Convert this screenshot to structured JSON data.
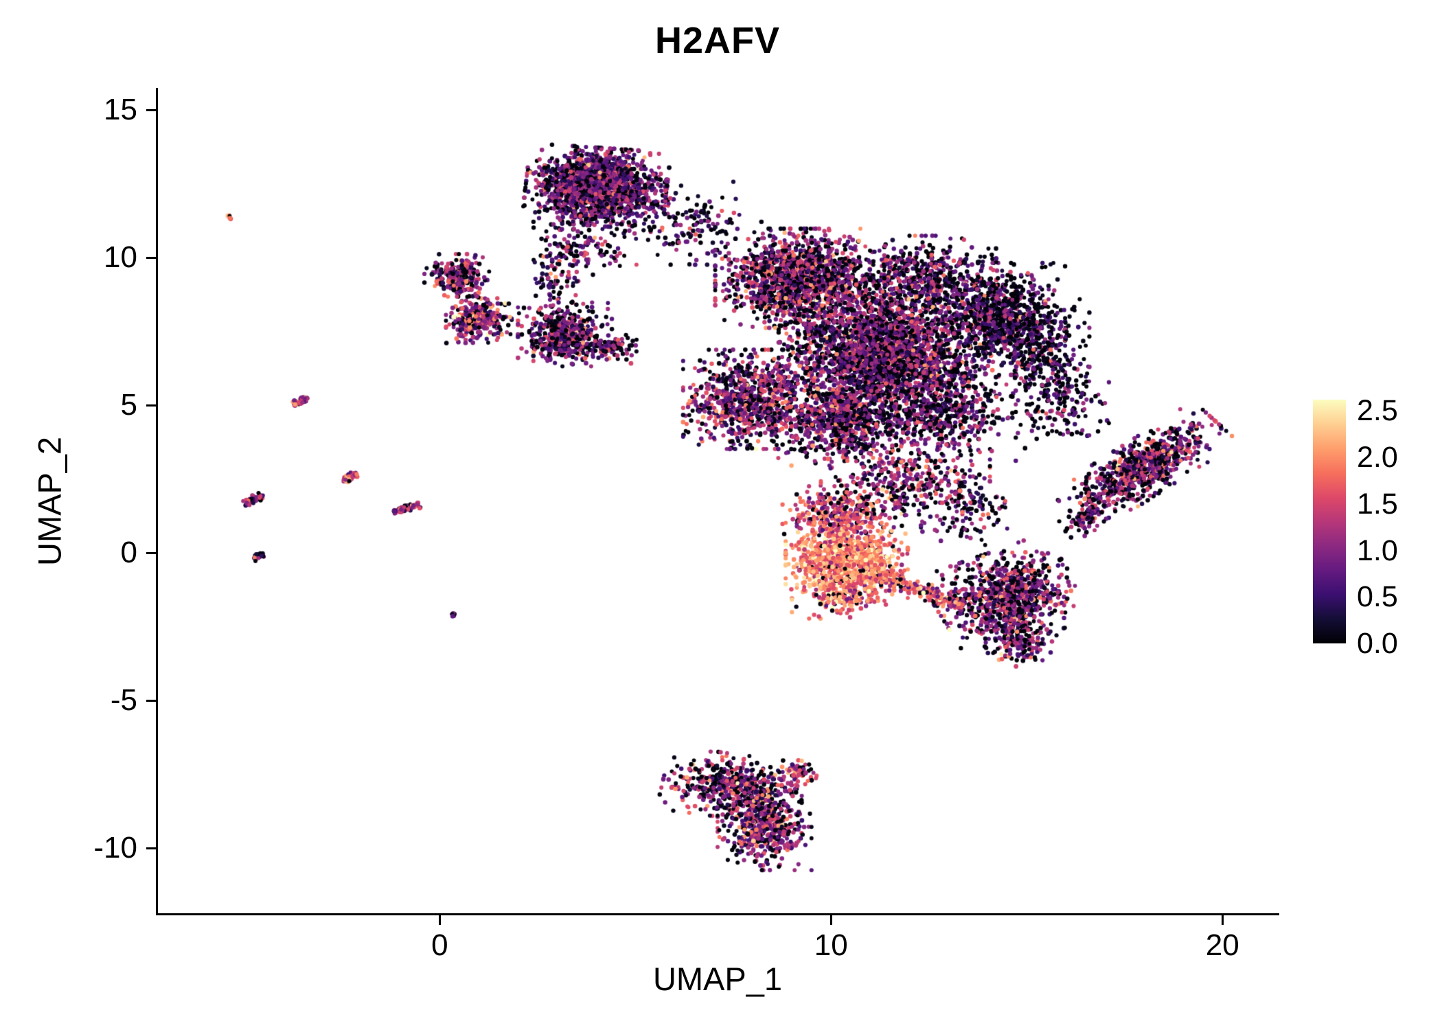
{
  "colors": {
    "background": "#ffffff",
    "text": "#000000",
    "axis": "#000000"
  },
  "chart_data": {
    "type": "scatter",
    "title": "H2AFV",
    "xlabel": "UMAP_1",
    "ylabel": "UMAP_2",
    "xlim": [
      -7.2,
      21.4
    ],
    "ylim": [
      -12.2,
      15.7
    ],
    "x_ticks": [
      0,
      10,
      20
    ],
    "y_ticks": [
      15,
      10,
      5,
      0,
      -5,
      -10
    ],
    "grid": false,
    "color_scale": {
      "name": "magma",
      "position": "right",
      "vmin": 0.0,
      "vmax": 2.5,
      "bar_value_max": 2.62,
      "tick_labels": [
        "2.5",
        "2.0",
        "1.5",
        "1.0",
        "0.5",
        "0.0"
      ],
      "stops": [
        "#000004",
        "#140e36",
        "#3b0f70",
        "#641a80",
        "#8c2981",
        "#b73779",
        "#de4968",
        "#f7705c",
        "#fe9f6d",
        "#fecf92",
        "#fcfdbf"
      ]
    },
    "point_count_approx": 16300,
    "clusters": [
      {
        "name": "top-island-core",
        "cx": 4.0,
        "cy": 12.4,
        "sx": 0.75,
        "sy": 0.55,
        "rot": -5,
        "n": 1700,
        "mean": 0.85,
        "sd": 0.45,
        "p0": 0.25,
        "shape": "blob"
      },
      {
        "name": "top-island-scatter",
        "cx": 6.3,
        "cy": 11.2,
        "sx": 0.8,
        "sy": 0.6,
        "rot": 0,
        "n": 160,
        "mean": 0.7,
        "sd": 0.5,
        "p0": 0.4,
        "shape": "blob"
      },
      {
        "name": "top-island-strand",
        "cx": 3.6,
        "cy": 10.4,
        "sx": 0.5,
        "sy": 0.5,
        "rot": 0,
        "n": 140,
        "mean": 0.8,
        "sd": 0.5,
        "p0": 0.3,
        "shape": "blob"
      },
      {
        "name": "left-blob-upper",
        "cx": 0.45,
        "cy": 9.4,
        "sx": 0.35,
        "sy": 0.3,
        "rot": 0,
        "n": 260,
        "mean": 1.0,
        "sd": 0.55,
        "p0": 0.25,
        "shape": "blob"
      },
      {
        "name": "left-blob-lower",
        "cx": 1.0,
        "cy": 7.9,
        "sx": 0.35,
        "sy": 0.33,
        "rot": 0,
        "n": 300,
        "mean": 1.1,
        "sd": 0.6,
        "p0": 0.18,
        "shape": "blob"
      },
      {
        "name": "left-bridge",
        "cx": 2.9,
        "cy": 9.2,
        "sx": 0.3,
        "sy": 0.5,
        "rot": 0,
        "n": 70,
        "mean": 0.8,
        "sd": 0.5,
        "p0": 0.3,
        "shape": "blob"
      },
      {
        "name": "mid-left-blob",
        "cx": 3.2,
        "cy": 7.4,
        "sx": 0.5,
        "sy": 0.45,
        "rot": 0,
        "n": 520,
        "mean": 0.85,
        "sd": 0.5,
        "p0": 0.28,
        "shape": "blob"
      },
      {
        "name": "mid-left-tail",
        "cx": 4.4,
        "cy": 6.9,
        "sx": 0.3,
        "sy": 0.2,
        "rot": 0,
        "n": 80,
        "mean": 0.85,
        "sd": 0.5,
        "p0": 0.3,
        "shape": "blob"
      },
      {
        "name": "main-upper-left",
        "cx": 9.2,
        "cy": 9.3,
        "sx": 0.9,
        "sy": 0.7,
        "rot": 0,
        "n": 1400,
        "mean": 1.0,
        "sd": 0.5,
        "p0": 0.28,
        "shape": "blob"
      },
      {
        "name": "main-center",
        "cx": 11.3,
        "cy": 6.8,
        "sx": 1.1,
        "sy": 1.0,
        "rot": 0,
        "n": 2600,
        "mean": 0.9,
        "sd": 0.5,
        "p0": 0.33,
        "shape": "blob"
      },
      {
        "name": "main-right-lobe",
        "cx": 14.3,
        "cy": 7.9,
        "sx": 0.7,
        "sy": 0.8,
        "rot": 0,
        "n": 900,
        "mean": 0.65,
        "sd": 0.45,
        "p0": 0.42,
        "shape": "blob"
      },
      {
        "name": "main-right-fringe",
        "cx": 15.4,
        "cy": 6.7,
        "sx": 0.5,
        "sy": 0.9,
        "rot": 0,
        "n": 260,
        "mean": 0.6,
        "sd": 0.45,
        "p0": 0.45,
        "shape": "blob"
      },
      {
        "name": "main-lower-left",
        "cx": 7.9,
        "cy": 5.2,
        "sx": 0.7,
        "sy": 0.7,
        "rot": 0,
        "n": 800,
        "mean": 1.0,
        "sd": 0.5,
        "p0": 0.25,
        "shape": "blob"
      },
      {
        "name": "main-bottom",
        "cx": 10.2,
        "cy": 4.4,
        "sx": 0.8,
        "sy": 0.6,
        "rot": 0,
        "n": 700,
        "mean": 0.95,
        "sd": 0.5,
        "p0": 0.28,
        "shape": "blob"
      },
      {
        "name": "main-bottom-right",
        "cx": 12.8,
        "cy": 4.8,
        "sx": 0.8,
        "sy": 0.7,
        "rot": 0,
        "n": 550,
        "mean": 0.8,
        "sd": 0.5,
        "p0": 0.35,
        "shape": "blob"
      },
      {
        "name": "main-top-bump",
        "cx": 12.3,
        "cy": 9.3,
        "sx": 0.8,
        "sy": 0.6,
        "rot": 0,
        "n": 500,
        "mean": 0.8,
        "sd": 0.5,
        "p0": 0.35,
        "shape": "blob"
      },
      {
        "name": "main-lower-connector",
        "cx": 11.9,
        "cy": 2.4,
        "sx": 0.9,
        "sy": 0.7,
        "rot": 0,
        "n": 380,
        "mean": 1.0,
        "sd": 0.5,
        "p0": 0.28,
        "shape": "blob"
      },
      {
        "name": "right-mid-sparse",
        "cx": 15.9,
        "cy": 5.2,
        "sx": 0.5,
        "sy": 0.7,
        "rot": 0,
        "n": 150,
        "mean": 0.7,
        "sd": 0.5,
        "p0": 0.4,
        "shape": "blob"
      },
      {
        "name": "hot-core",
        "cx": 10.4,
        "cy": -0.3,
        "sx": 0.65,
        "sy": 0.55,
        "rot": 0,
        "n": 950,
        "mean": 1.85,
        "sd": 0.32,
        "p0": 0.04,
        "shape": "blob"
      },
      {
        "name": "hot-fringe-top",
        "cx": 10.2,
        "cy": 1.2,
        "sx": 0.6,
        "sy": 0.45,
        "rot": 0,
        "n": 350,
        "mean": 1.45,
        "sd": 0.4,
        "p0": 0.1,
        "shape": "blob"
      },
      {
        "name": "hot-tail-right",
        "cx": 12.2,
        "cy": -1.2,
        "sx": 1.3,
        "sy": 0.12,
        "rot": -25,
        "n": 220,
        "mean": 1.5,
        "sd": 0.45,
        "p0": 0.1,
        "shape": "streak"
      },
      {
        "name": "hot-fringe-bottom",
        "cx": 10.2,
        "cy": -1.5,
        "sx": 0.5,
        "sy": 0.3,
        "rot": 0,
        "n": 150,
        "mean": 1.6,
        "sd": 0.4,
        "p0": 0.08,
        "shape": "blob"
      },
      {
        "name": "lower-right-cluster",
        "cx": 14.5,
        "cy": -1.5,
        "sx": 0.75,
        "sy": 0.65,
        "rot": 25,
        "n": 850,
        "mean": 0.95,
        "sd": 0.5,
        "p0": 0.3,
        "shape": "blob"
      },
      {
        "name": "lower-right-tip",
        "cx": 14.8,
        "cy": -3.0,
        "sx": 0.4,
        "sy": 0.35,
        "rot": 0,
        "n": 150,
        "mean": 0.9,
        "sd": 0.5,
        "p0": 0.3,
        "shape": "blob"
      },
      {
        "name": "lower-right-connector",
        "cx": 13.5,
        "cy": 1.5,
        "sx": 0.5,
        "sy": 0.6,
        "rot": 0,
        "n": 120,
        "mean": 0.8,
        "sd": 0.5,
        "p0": 0.35,
        "shape": "blob"
      },
      {
        "name": "far-right-band",
        "cx": 18.0,
        "cy": 2.9,
        "sx": 1.0,
        "sy": 0.38,
        "rot": 40,
        "n": 750,
        "mean": 0.95,
        "sd": 0.5,
        "p0": 0.3,
        "shape": "blob"
      },
      {
        "name": "far-right-connector",
        "cx": 16.5,
        "cy": 1.2,
        "sx": 0.3,
        "sy": 0.2,
        "rot": 40,
        "n": 80,
        "mean": 0.9,
        "sd": 0.5,
        "p0": 0.3,
        "shape": "blob"
      },
      {
        "name": "bottom-cluster-upper",
        "cx": 7.5,
        "cy": -7.9,
        "sx": 0.75,
        "sy": 0.45,
        "rot": -10,
        "n": 500,
        "mean": 1.0,
        "sd": 0.55,
        "p0": 0.25,
        "shape": "blob"
      },
      {
        "name": "bottom-cluster-lower",
        "cx": 8.3,
        "cy": -9.3,
        "sx": 0.5,
        "sy": 0.6,
        "rot": 0,
        "n": 450,
        "mean": 1.0,
        "sd": 0.55,
        "p0": 0.22,
        "shape": "blob"
      },
      {
        "name": "bottom-cluster-tip",
        "cx": 9.2,
        "cy": -7.5,
        "sx": 0.25,
        "sy": 0.2,
        "rot": 0,
        "n": 60,
        "mean": 1.2,
        "sd": 0.5,
        "p0": 0.2,
        "shape": "blob"
      },
      {
        "name": "streak-1",
        "cx": -3.55,
        "cy": 5.15,
        "sx": 0.22,
        "sy": 0.05,
        "rot": 35,
        "n": 45,
        "mean": 1.15,
        "sd": 0.45,
        "p0": 0.15,
        "shape": "streak"
      },
      {
        "name": "streak-2",
        "cx": -2.3,
        "cy": 2.55,
        "sx": 0.22,
        "sy": 0.05,
        "rot": 35,
        "n": 50,
        "mean": 1.5,
        "sd": 0.5,
        "p0": 0.1,
        "shape": "streak"
      },
      {
        "name": "streak-3",
        "cx": -0.85,
        "cy": 1.5,
        "sx": 0.35,
        "sy": 0.05,
        "rot": 20,
        "n": 65,
        "mean": 1.2,
        "sd": 0.45,
        "p0": 0.15,
        "shape": "streak"
      },
      {
        "name": "streak-4",
        "cx": -4.75,
        "cy": 1.8,
        "sx": 0.28,
        "sy": 0.05,
        "rot": 35,
        "n": 50,
        "mean": 1.1,
        "sd": 0.45,
        "p0": 0.15,
        "shape": "streak"
      },
      {
        "name": "streak-5",
        "cx": -4.65,
        "cy": -0.1,
        "sx": 0.15,
        "sy": 0.05,
        "rot": 35,
        "n": 25,
        "mean": 0.9,
        "sd": 0.4,
        "p0": 0.2,
        "shape": "streak"
      },
      {
        "name": "dot-top-left",
        "cx": -5.4,
        "cy": 11.4,
        "sx": 0.07,
        "sy": 0.05,
        "rot": 0,
        "n": 9,
        "mean": 1.9,
        "sd": 0.4,
        "p0": 0.1,
        "shape": "streak"
      },
      {
        "name": "dot-below-left",
        "cx": 0.35,
        "cy": -2.1,
        "sx": 0.06,
        "sy": 0.05,
        "rot": 0,
        "n": 6,
        "mean": 0.8,
        "sd": 0.4,
        "p0": 0.2,
        "shape": "streak"
      }
    ]
  }
}
